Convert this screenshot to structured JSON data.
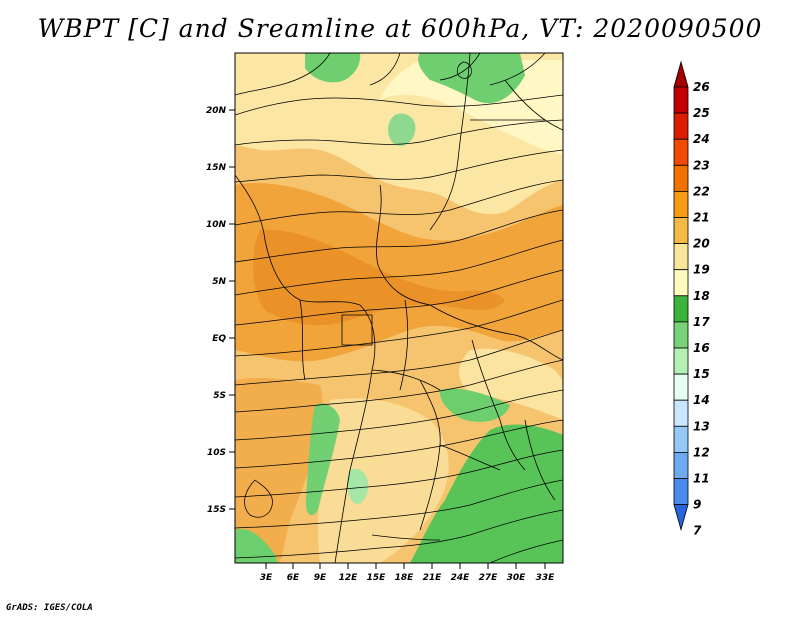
{
  "title": "WBPT [C] and Sreamline at 600hPa, VT: 2020090500",
  "credit": "GrADS: IGES/COLA",
  "map": {
    "variable": "WBPT [C]",
    "level": "600hPa",
    "valid_time": "2020090500",
    "lat_labels": [
      "20N",
      "15N",
      "10N",
      "5N",
      "EQ",
      "5S",
      "10S",
      "15S"
    ],
    "lon_labels": [
      "3E",
      "6E",
      "9E",
      "12E",
      "15E",
      "18E",
      "21E",
      "24E",
      "27E",
      "30E",
      "33E"
    ]
  },
  "colorbar": {
    "labels": [
      "26",
      "25",
      "24",
      "23",
      "22",
      "21",
      "20",
      "19",
      "18",
      "17",
      "16",
      "15",
      "14",
      "13",
      "12",
      "11",
      "9",
      "7"
    ],
    "colors": [
      "#a50000",
      "#c30000",
      "#dc1e00",
      "#f04b00",
      "#f07300",
      "#f59b14",
      "#f5b946",
      "#fae69b",
      "#fffabe",
      "#3cb43c",
      "#78d278",
      "#b4f0b4",
      "#e6fff0",
      "#c8e6ff",
      "#96c8f5",
      "#6eaaf0",
      "#4b8ceb",
      "#2864dc"
    ]
  }
}
